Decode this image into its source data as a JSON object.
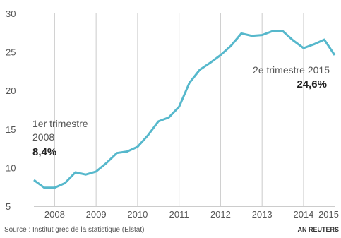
{
  "chart_data": {
    "type": "line",
    "series": [
      {
        "x": [
          2008.0,
          2008.25,
          2008.5,
          2008.75,
          2009.0,
          2009.25,
          2009.5,
          2009.75,
          2010.0,
          2010.25,
          2010.5,
          2010.75,
          2011.0,
          2011.25,
          2011.5,
          2011.75,
          2012.0,
          2012.25,
          2012.5,
          2012.75,
          2013.0,
          2013.25,
          2013.5,
          2013.75,
          2014.0,
          2014.25,
          2014.5,
          2014.75,
          2015.0,
          2015.25
        ],
        "values": [
          8.4,
          7.4,
          7.4,
          8.0,
          9.4,
          9.1,
          9.5,
          10.6,
          11.9,
          12.1,
          12.7,
          14.2,
          16.0,
          16.5,
          17.9,
          21.0,
          22.7,
          23.6,
          24.6,
          25.8,
          27.4,
          27.1,
          27.2,
          27.7,
          27.7,
          26.5,
          25.5,
          26.0,
          26.6,
          24.6
        ]
      }
    ],
    "xlim": [
      2008.0,
      2015.25
    ],
    "ylim": [
      5,
      30
    ],
    "yticks": [
      5,
      10,
      15,
      20,
      25,
      30
    ],
    "xtick_labels": [
      "2008",
      "2009",
      "2010",
      "2011",
      "2012",
      "2013",
      "2014",
      "2015"
    ],
    "grid": "vertical",
    "line_color": "#56b8cc",
    "annotations": [
      {
        "lines": [
          "1er trimestre",
          "2008"
        ],
        "value_label": "8,4%"
      },
      {
        "lines": [
          "2e trimestre 2015"
        ],
        "value_label": "24,6%"
      }
    ]
  },
  "footer": {
    "source": "Source : Institut grec de la statistique (Elstat)",
    "credit": "AN REUTERS"
  }
}
